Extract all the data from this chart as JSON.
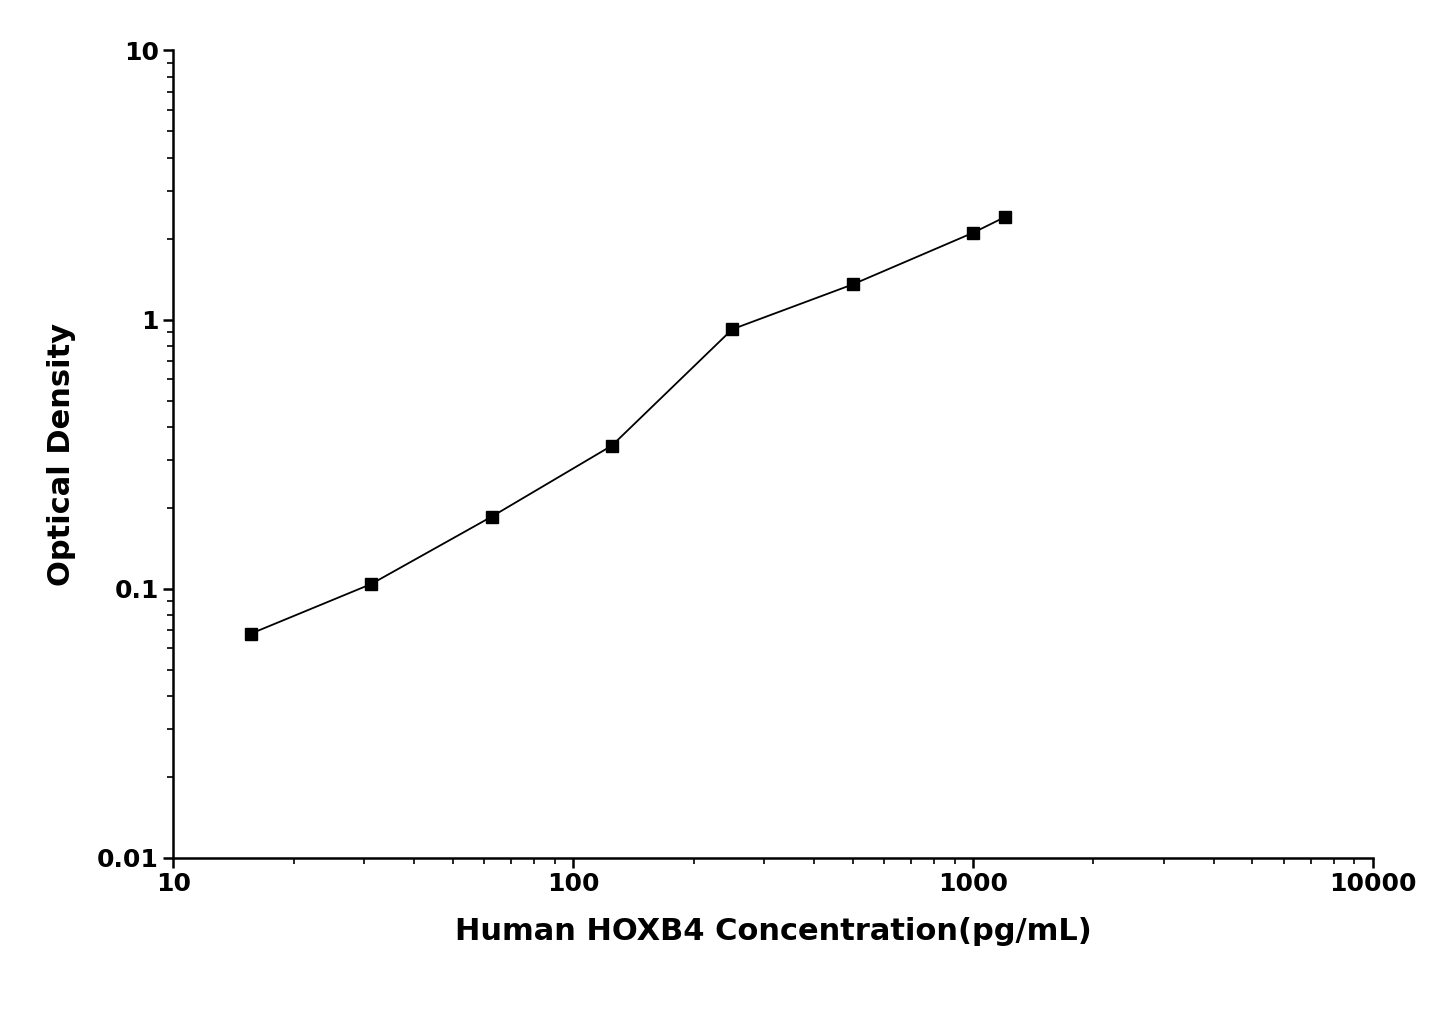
{
  "x_data": [
    15.625,
    31.25,
    62.5,
    125,
    250,
    500,
    1000,
    1200
  ],
  "y_data": [
    0.068,
    0.104,
    0.185,
    0.34,
    0.92,
    1.35,
    2.1,
    2.4
  ],
  "xlabel": "Human HOXB4 Concentration(pg/mL)",
  "ylabel": "Optical Density",
  "xlim": [
    10,
    10000
  ],
  "ylim": [
    0.01,
    10
  ],
  "x_ticks": [
    10,
    100,
    1000,
    10000
  ],
  "y_ticks": [
    0.01,
    0.1,
    1,
    10
  ],
  "line_color": "#000000",
  "marker_color": "#000000",
  "background_color": "#ffffff",
  "marker": "s",
  "marker_size": 9,
  "line_width": 1.3,
  "xlabel_fontsize": 22,
  "ylabel_fontsize": 22,
  "tick_fontsize": 18,
  "axis_linewidth": 1.8
}
